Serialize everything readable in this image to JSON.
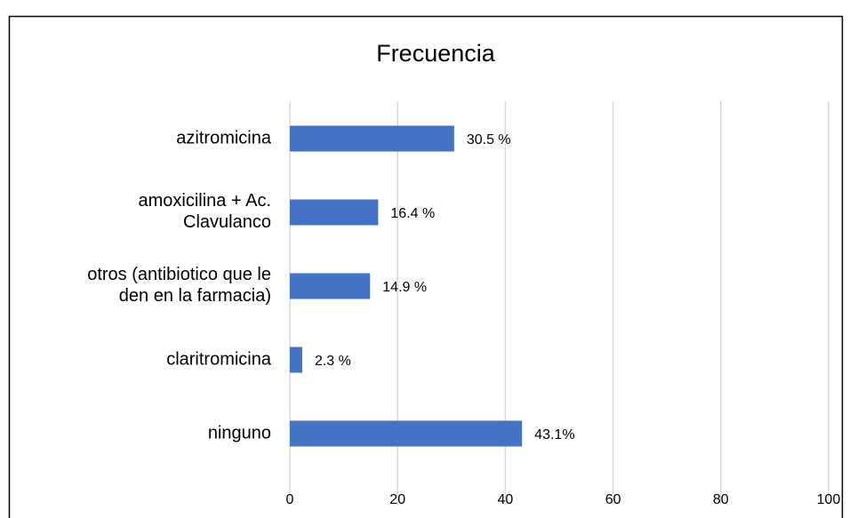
{
  "chart_data": {
    "type": "bar",
    "orientation": "horizontal",
    "title": "Frecuencia",
    "categories": [
      "azitromicina",
      "amoxicilina + Ac. Clavulanco",
      "otros (antibiotico que le den en la farmacia)",
      "claritromicina",
      "ninguno"
    ],
    "values": [
      30.5,
      16.4,
      14.9,
      2.3,
      43.1
    ],
    "value_labels": [
      "30.5 %",
      "16.4 %",
      "14.9 %",
      "2.3 %",
      "43.1%"
    ],
    "color": "#4472c4",
    "xlim": [
      0,
      100
    ],
    "xticks": [
      0,
      20,
      40,
      60,
      80,
      100
    ],
    "grid": true
  }
}
